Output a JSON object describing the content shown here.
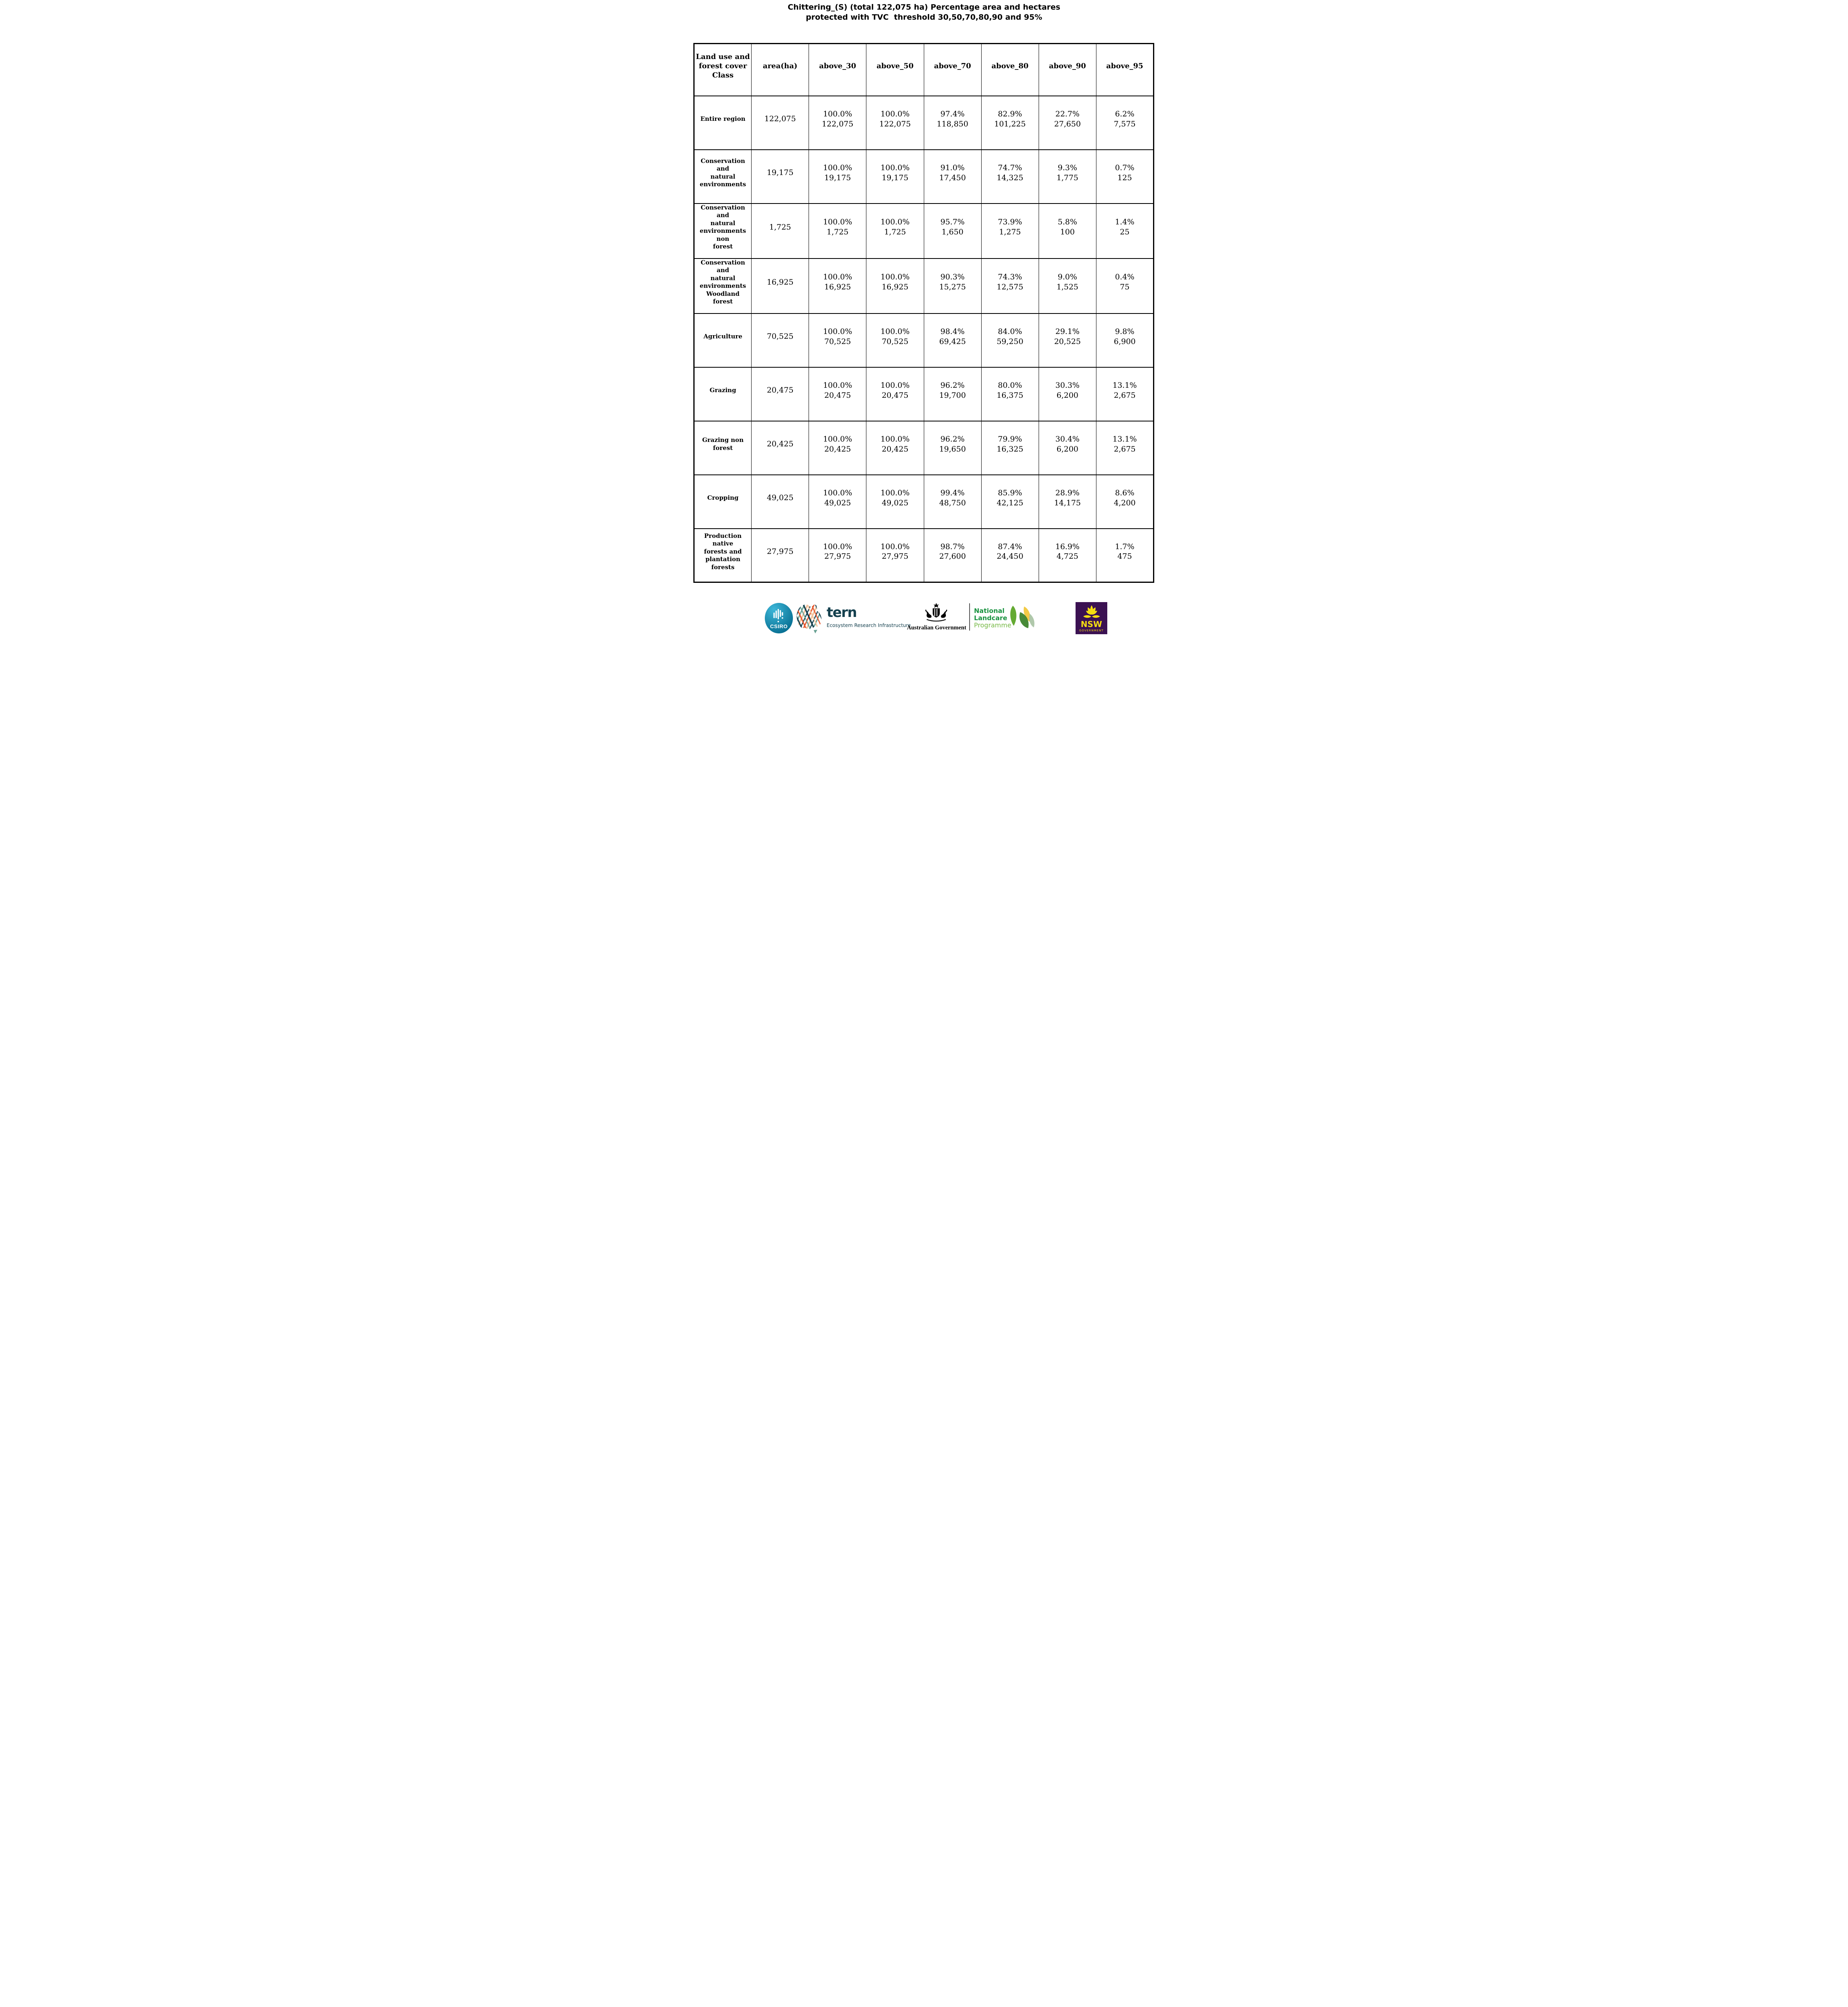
{
  "title": {
    "line1": "Chittering_(S) (total 122,075 ha) Percentage area and hectares",
    "line2": "protected with TVC  threshold 30,50,70,80,90 and 95%"
  },
  "table": {
    "columns": [
      "Land use and\nforest cover\nClass",
      "area(ha)",
      "above_30",
      "above_50",
      "above_70",
      "above_80",
      "above_90",
      "above_95"
    ],
    "rows": [
      {
        "label": "Entire region",
        "area": "122,075",
        "values": [
          {
            "pct": "100.0%",
            "ha": "122,075"
          },
          {
            "pct": "100.0%",
            "ha": "122,075"
          },
          {
            "pct": "97.4%",
            "ha": "118,850"
          },
          {
            "pct": "82.9%",
            "ha": "101,225"
          },
          {
            "pct": "22.7%",
            "ha": "27,650"
          },
          {
            "pct": "6.2%",
            "ha": "7,575"
          }
        ]
      },
      {
        "label": "Conservation and\nnatural\nenvironments",
        "area": "19,175",
        "values": [
          {
            "pct": "100.0%",
            "ha": "19,175"
          },
          {
            "pct": "100.0%",
            "ha": "19,175"
          },
          {
            "pct": "91.0%",
            "ha": "17,450"
          },
          {
            "pct": "74.7%",
            "ha": "14,325"
          },
          {
            "pct": "9.3%",
            "ha": "1,775"
          },
          {
            "pct": "0.7%",
            "ha": "125"
          }
        ]
      },
      {
        "label": "Conservation and\nnatural\nenvironments non\nforest",
        "area": "1,725",
        "values": [
          {
            "pct": "100.0%",
            "ha": "1,725"
          },
          {
            "pct": "100.0%",
            "ha": "1,725"
          },
          {
            "pct": "95.7%",
            "ha": "1,650"
          },
          {
            "pct": "73.9%",
            "ha": "1,275"
          },
          {
            "pct": "5.8%",
            "ha": "100"
          },
          {
            "pct": "1.4%",
            "ha": "25"
          }
        ]
      },
      {
        "label": "Conservation and\nnatural\nenvironments\nWoodland forest",
        "area": "16,925",
        "values": [
          {
            "pct": "100.0%",
            "ha": "16,925"
          },
          {
            "pct": "100.0%",
            "ha": "16,925"
          },
          {
            "pct": "90.3%",
            "ha": "15,275"
          },
          {
            "pct": "74.3%",
            "ha": "12,575"
          },
          {
            "pct": "9.0%",
            "ha": "1,525"
          },
          {
            "pct": "0.4%",
            "ha": "75"
          }
        ]
      },
      {
        "label": "Agriculture",
        "area": "70,525",
        "values": [
          {
            "pct": "100.0%",
            "ha": "70,525"
          },
          {
            "pct": "100.0%",
            "ha": "70,525"
          },
          {
            "pct": "98.4%",
            "ha": "69,425"
          },
          {
            "pct": "84.0%",
            "ha": "59,250"
          },
          {
            "pct": "29.1%",
            "ha": "20,525"
          },
          {
            "pct": "9.8%",
            "ha": "6,900"
          }
        ]
      },
      {
        "label": "Grazing",
        "area": "20,475",
        "values": [
          {
            "pct": "100.0%",
            "ha": "20,475"
          },
          {
            "pct": "100.0%",
            "ha": "20,475"
          },
          {
            "pct": "96.2%",
            "ha": "19,700"
          },
          {
            "pct": "80.0%",
            "ha": "16,375"
          },
          {
            "pct": "30.3%",
            "ha": "6,200"
          },
          {
            "pct": "13.1%",
            "ha": "2,675"
          }
        ]
      },
      {
        "label": "Grazing non\nforest",
        "area": "20,425",
        "values": [
          {
            "pct": "100.0%",
            "ha": "20,425"
          },
          {
            "pct": "100.0%",
            "ha": "20,425"
          },
          {
            "pct": "96.2%",
            "ha": "19,650"
          },
          {
            "pct": "79.9%",
            "ha": "16,325"
          },
          {
            "pct": "30.4%",
            "ha": "6,200"
          },
          {
            "pct": "13.1%",
            "ha": "2,675"
          }
        ]
      },
      {
        "label": "Cropping",
        "area": "49,025",
        "values": [
          {
            "pct": "100.0%",
            "ha": "49,025"
          },
          {
            "pct": "100.0%",
            "ha": "49,025"
          },
          {
            "pct": "99.4%",
            "ha": "48,750"
          },
          {
            "pct": "85.9%",
            "ha": "42,125"
          },
          {
            "pct": "28.9%",
            "ha": "14,175"
          },
          {
            "pct": "8.6%",
            "ha": "4,200"
          }
        ]
      },
      {
        "label": "Production native\nforests and\nplantation\nforests",
        "area": "27,975",
        "values": [
          {
            "pct": "100.0%",
            "ha": "27,975"
          },
          {
            "pct": "100.0%",
            "ha": "27,975"
          },
          {
            "pct": "98.7%",
            "ha": "27,600"
          },
          {
            "pct": "87.4%",
            "ha": "24,450"
          },
          {
            "pct": "16.9%",
            "ha": "4,725"
          },
          {
            "pct": "1.7%",
            "ha": "475"
          }
        ]
      }
    ]
  },
  "footer": {
    "csiro": {
      "label": "CSIRO"
    },
    "tern": {
      "wordmark": "tern",
      "subtitle": "Ecosystem Research Infrastructure"
    },
    "australian_government": {
      "label": "Australian Government"
    },
    "landcare": {
      "line1": "National",
      "line2": "Landcare",
      "line3": "Programme"
    },
    "nsw": {
      "label": "NSW",
      "sublabel": "GOVERNMENT"
    }
  },
  "colors": {
    "table-border": "#000000",
    "csiro-blue-1": "#3cb6d8",
    "csiro-blue-2": "#006588",
    "tern-dark": "#14404e",
    "tern-orange": "#e4582e",
    "tern-peach": "#f2c5a0",
    "tern-sage": "#69a193",
    "landcare-green": "#18923f",
    "landcare-light-green": "#74b843",
    "leaf-green": "#57a322",
    "leaf-yellow": "#f0c32c",
    "leaf-dark": "#2f7a1d",
    "leaf-sage": "#a9c3a4",
    "nsw-purple": "#3b1152",
    "nsw-yellow": "#f5dd11"
  }
}
